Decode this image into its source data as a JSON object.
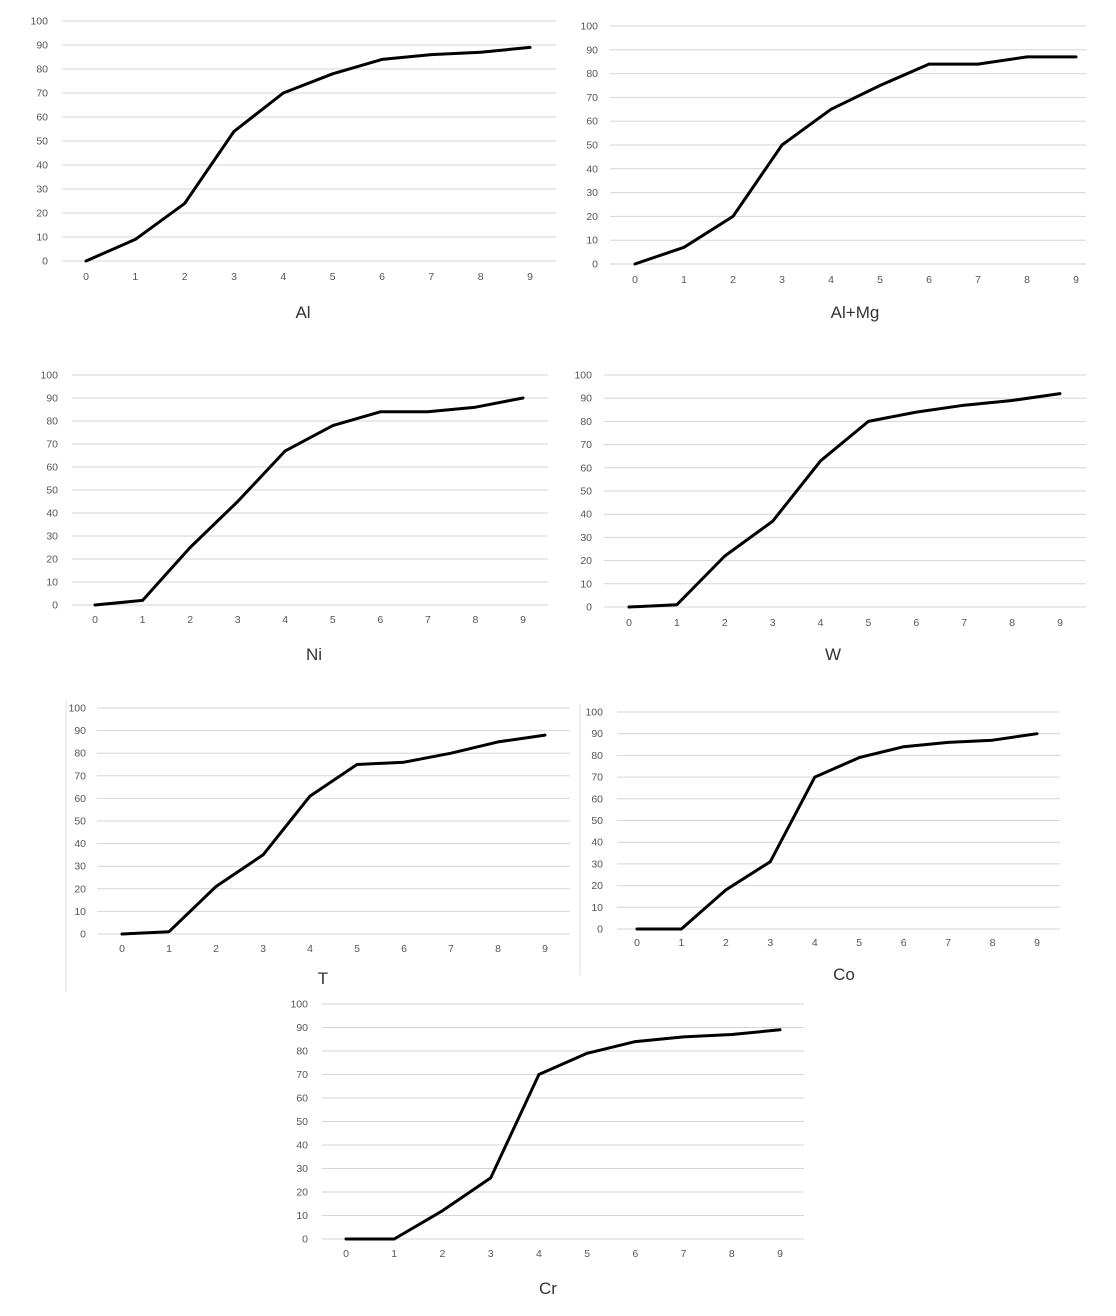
{
  "chart_data": [
    {
      "type": "line",
      "title": "Al",
      "x": [
        "0",
        "1",
        "2",
        "3",
        "4",
        "5",
        "6",
        "7",
        "8",
        "9"
      ],
      "values": [
        0,
        9,
        24,
        54,
        70,
        78,
        84,
        86,
        87,
        89
      ],
      "yticks": [
        "0",
        "10",
        "20",
        "30",
        "40",
        "50",
        "60",
        "70",
        "80",
        "90",
        "100"
      ],
      "ylim": [
        0,
        100
      ],
      "grid": true
    },
    {
      "type": "line",
      "title": "Al+Mg",
      "x": [
        "0",
        "1",
        "2",
        "3",
        "4",
        "5",
        "6",
        "7",
        "8",
        "9"
      ],
      "values": [
        0,
        7,
        20,
        50,
        65,
        75,
        84,
        84,
        87,
        87
      ],
      "yticks": [
        "0",
        "10",
        "20",
        "30",
        "40",
        "50",
        "60",
        "70",
        "80",
        "90",
        "100"
      ],
      "ylim": [
        0,
        100
      ],
      "grid": true
    },
    {
      "type": "line",
      "title": "Ni",
      "x": [
        "0",
        "1",
        "2",
        "3",
        "4",
        "5",
        "6",
        "7",
        "8",
        "9"
      ],
      "values": [
        0,
        2,
        25,
        45,
        67,
        78,
        84,
        84,
        86,
        90
      ],
      "yticks": [
        "0",
        "10",
        "20",
        "30",
        "40",
        "50",
        "60",
        "70",
        "80",
        "90",
        "100"
      ],
      "ylim": [
        0,
        100
      ],
      "grid": true
    },
    {
      "type": "line",
      "title": "W",
      "x": [
        "0",
        "1",
        "2",
        "3",
        "4",
        "5",
        "6",
        "7",
        "8",
        "9"
      ],
      "values": [
        0,
        1,
        22,
        37,
        63,
        80,
        84,
        87,
        89,
        92
      ],
      "yticks": [
        "0",
        "10",
        "20",
        "30",
        "40",
        "50",
        "60",
        "70",
        "80",
        "90",
        "100"
      ],
      "ylim": [
        0,
        100
      ],
      "grid": true
    },
    {
      "type": "line",
      "title": "T",
      "x": [
        "0",
        "1",
        "2",
        "3",
        "4",
        "5",
        "6",
        "7",
        "8",
        "9"
      ],
      "values": [
        0,
        1,
        21,
        35,
        61,
        75,
        76,
        80,
        85,
        88
      ],
      "yticks": [
        "0",
        "10",
        "20",
        "30",
        "40",
        "50",
        "60",
        "70",
        "80",
        "90",
        "100"
      ],
      "ylim": [
        0,
        100
      ],
      "grid": true
    },
    {
      "type": "line",
      "title": "Co",
      "x": [
        "0",
        "1",
        "2",
        "3",
        "4",
        "5",
        "6",
        "7",
        "8",
        "9"
      ],
      "values": [
        0,
        0,
        18,
        31,
        70,
        79,
        84,
        86,
        87,
        90
      ],
      "yticks": [
        "0",
        "10",
        "20",
        "30",
        "40",
        "50",
        "60",
        "70",
        "80",
        "90",
        "100"
      ],
      "ylim": [
        0,
        100
      ],
      "grid": true
    },
    {
      "type": "line",
      "title": "Cr",
      "x": [
        "0",
        "1",
        "2",
        "3",
        "4",
        "5",
        "6",
        "7",
        "8",
        "9"
      ],
      "values": [
        0,
        0,
        12,
        26,
        70,
        79,
        84,
        86,
        87,
        89
      ],
      "yticks": [
        "0",
        "10",
        "20",
        "30",
        "40",
        "50",
        "60",
        "70",
        "80",
        "90",
        "100"
      ],
      "ylim": [
        0,
        100
      ],
      "grid": true
    }
  ]
}
